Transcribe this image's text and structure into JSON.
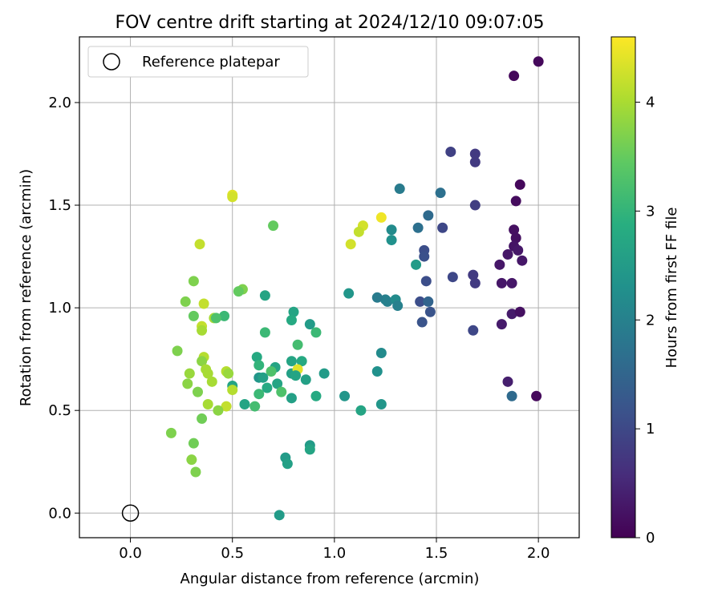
{
  "chart_data": {
    "type": "scatter",
    "title": "FOV centre drift starting at 2024/12/10 09:07:05",
    "xlabel": "Angular distance from reference (arcmin)",
    "ylabel": "Rotation from reference (arcmin)",
    "xlim": [
      -0.25,
      2.2
    ],
    "ylim": [
      -0.12,
      2.32
    ],
    "xticks": [
      "0.0",
      "0.5",
      "1.0",
      "1.5",
      "2.0"
    ],
    "yticks": [
      "0.0",
      "0.5",
      "1.0",
      "1.5",
      "2.0"
    ],
    "grid": true,
    "legend": {
      "position": "top-left",
      "entries": [
        "Reference platepar"
      ]
    },
    "reference_point": {
      "x": 0.0,
      "y": 0.0
    },
    "colorbar": {
      "label": "Hours from first FF file",
      "colormap": "viridis",
      "range": [
        0,
        4.6
      ],
      "ticks": [
        "0",
        "1",
        "2",
        "3",
        "4"
      ]
    },
    "points": [
      {
        "x": 2.0,
        "y": 2.2,
        "c": 0.1
      },
      {
        "x": 1.88,
        "y": 2.13,
        "c": 0.1
      },
      {
        "x": 1.91,
        "y": 1.6,
        "c": 0.1
      },
      {
        "x": 1.89,
        "y": 1.52,
        "c": 0.15
      },
      {
        "x": 1.88,
        "y": 1.38,
        "c": 0.2
      },
      {
        "x": 1.89,
        "y": 1.34,
        "c": 0.2
      },
      {
        "x": 1.88,
        "y": 1.3,
        "c": 0.25
      },
      {
        "x": 1.9,
        "y": 1.28,
        "c": 0.3
      },
      {
        "x": 1.85,
        "y": 1.26,
        "c": 0.3
      },
      {
        "x": 1.92,
        "y": 1.23,
        "c": 0.3
      },
      {
        "x": 1.81,
        "y": 1.21,
        "c": 0.3
      },
      {
        "x": 1.82,
        "y": 1.12,
        "c": 0.3
      },
      {
        "x": 1.87,
        "y": 1.12,
        "c": 0.3
      },
      {
        "x": 1.87,
        "y": 0.97,
        "c": 0.35
      },
      {
        "x": 1.91,
        "y": 0.98,
        "c": 0.2
      },
      {
        "x": 1.82,
        "y": 0.92,
        "c": 0.35
      },
      {
        "x": 1.85,
        "y": 0.64,
        "c": 0.4
      },
      {
        "x": 1.99,
        "y": 0.57,
        "c": 0.1
      },
      {
        "x": 1.87,
        "y": 0.57,
        "c": 1.6
      },
      {
        "x": 1.57,
        "y": 1.76,
        "c": 0.9
      },
      {
        "x": 1.69,
        "y": 1.75,
        "c": 0.8
      },
      {
        "x": 1.69,
        "y": 1.71,
        "c": 0.8
      },
      {
        "x": 1.69,
        "y": 1.5,
        "c": 0.85
      },
      {
        "x": 1.53,
        "y": 1.39,
        "c": 1.0
      },
      {
        "x": 1.58,
        "y": 1.15,
        "c": 1.0
      },
      {
        "x": 1.68,
        "y": 1.16,
        "c": 0.8
      },
      {
        "x": 1.69,
        "y": 1.12,
        "c": 0.8
      },
      {
        "x": 1.68,
        "y": 0.89,
        "c": 1.0
      },
      {
        "x": 1.44,
        "y": 1.28,
        "c": 1.1
      },
      {
        "x": 1.44,
        "y": 1.25,
        "c": 1.15
      },
      {
        "x": 1.45,
        "y": 1.13,
        "c": 1.1
      },
      {
        "x": 1.42,
        "y": 1.03,
        "c": 1.1
      },
      {
        "x": 1.46,
        "y": 1.03,
        "c": 1.5
      },
      {
        "x": 1.47,
        "y": 0.98,
        "c": 1.2
      },
      {
        "x": 1.43,
        "y": 0.93,
        "c": 1.2
      },
      {
        "x": 1.52,
        "y": 1.56,
        "c": 1.7
      },
      {
        "x": 1.46,
        "y": 1.45,
        "c": 1.6
      },
      {
        "x": 1.41,
        "y": 1.39,
        "c": 1.7
      },
      {
        "x": 1.32,
        "y": 1.58,
        "c": 1.9
      },
      {
        "x": 1.28,
        "y": 1.38,
        "c": 2.2
      },
      {
        "x": 1.28,
        "y": 1.33,
        "c": 2.3
      },
      {
        "x": 1.4,
        "y": 1.21,
        "c": 2.5
      },
      {
        "x": 1.25,
        "y": 1.04,
        "c": 2.0
      },
      {
        "x": 1.26,
        "y": 1.03,
        "c": 2.0
      },
      {
        "x": 1.3,
        "y": 1.04,
        "c": 2.2
      },
      {
        "x": 1.31,
        "y": 1.01,
        "c": 2.0
      },
      {
        "x": 1.21,
        "y": 1.05,
        "c": 1.9
      },
      {
        "x": 1.23,
        "y": 0.78,
        "c": 2.2
      },
      {
        "x": 1.21,
        "y": 0.69,
        "c": 2.3
      },
      {
        "x": 1.23,
        "y": 0.53,
        "c": 2.4
      },
      {
        "x": 1.13,
        "y": 0.5,
        "c": 2.7
      },
      {
        "x": 1.05,
        "y": 0.57,
        "c": 2.4
      },
      {
        "x": 1.07,
        "y": 1.07,
        "c": 2.4
      },
      {
        "x": 1.23,
        "y": 1.44,
        "c": 4.5
      },
      {
        "x": 1.14,
        "y": 1.4,
        "c": 4.3
      },
      {
        "x": 1.12,
        "y": 1.37,
        "c": 4.2
      },
      {
        "x": 1.08,
        "y": 1.31,
        "c": 4.3
      },
      {
        "x": 0.8,
        "y": 0.98,
        "c": 2.7
      },
      {
        "x": 0.79,
        "y": 0.94,
        "c": 2.8
      },
      {
        "x": 0.88,
        "y": 0.92,
        "c": 2.5
      },
      {
        "x": 0.91,
        "y": 0.88,
        "c": 3.1
      },
      {
        "x": 0.82,
        "y": 0.82,
        "c": 3.2
      },
      {
        "x": 0.84,
        "y": 0.74,
        "c": 2.8
      },
      {
        "x": 0.79,
        "y": 0.74,
        "c": 2.7
      },
      {
        "x": 0.95,
        "y": 0.68,
        "c": 2.5
      },
      {
        "x": 0.79,
        "y": 0.68,
        "c": 2.6
      },
      {
        "x": 0.82,
        "y": 0.7,
        "c": 4.4
      },
      {
        "x": 0.81,
        "y": 0.67,
        "c": 2.7
      },
      {
        "x": 0.86,
        "y": 0.65,
        "c": 2.6
      },
      {
        "x": 0.71,
        "y": 0.71,
        "c": 2.7
      },
      {
        "x": 0.69,
        "y": 0.69,
        "c": 3.3
      },
      {
        "x": 0.72,
        "y": 0.63,
        "c": 2.7
      },
      {
        "x": 0.74,
        "y": 0.59,
        "c": 3.3
      },
      {
        "x": 0.67,
        "y": 0.61,
        "c": 2.8
      },
      {
        "x": 0.79,
        "y": 0.56,
        "c": 2.6
      },
      {
        "x": 0.91,
        "y": 0.57,
        "c": 2.8
      },
      {
        "x": 0.88,
        "y": 0.33,
        "c": 2.5
      },
      {
        "x": 0.88,
        "y": 0.31,
        "c": 2.7
      },
      {
        "x": 0.76,
        "y": 0.27,
        "c": 2.5
      },
      {
        "x": 0.77,
        "y": 0.24,
        "c": 2.6
      },
      {
        "x": 0.73,
        "y": -0.01,
        "c": 2.5
      },
      {
        "x": 0.66,
        "y": 1.06,
        "c": 2.7
      },
      {
        "x": 0.66,
        "y": 0.88,
        "c": 3.1
      },
      {
        "x": 0.62,
        "y": 0.76,
        "c": 2.8
      },
      {
        "x": 0.63,
        "y": 0.72,
        "c": 3.0
      },
      {
        "x": 0.63,
        "y": 0.66,
        "c": 2.4
      },
      {
        "x": 0.65,
        "y": 0.66,
        "c": 2.6
      },
      {
        "x": 0.63,
        "y": 0.58,
        "c": 3.1
      },
      {
        "x": 0.56,
        "y": 0.53,
        "c": 2.7
      },
      {
        "x": 0.61,
        "y": 0.52,
        "c": 3.2
      },
      {
        "x": 0.5,
        "y": 0.62,
        "c": 2.7
      },
      {
        "x": 0.5,
        "y": 0.6,
        "c": 4.1
      },
      {
        "x": 0.7,
        "y": 1.4,
        "c": 3.5
      },
      {
        "x": 0.5,
        "y": 1.55,
        "c": 4.4
      },
      {
        "x": 0.5,
        "y": 1.54,
        "c": 4.3
      },
      {
        "x": 0.55,
        "y": 1.09,
        "c": 3.7
      },
      {
        "x": 0.53,
        "y": 1.08,
        "c": 3.5
      },
      {
        "x": 0.46,
        "y": 0.96,
        "c": 3.1
      },
      {
        "x": 0.41,
        "y": 0.95,
        "c": 4.0
      },
      {
        "x": 0.42,
        "y": 0.95,
        "c": 3.3
      },
      {
        "x": 0.34,
        "y": 1.31,
        "c": 4.2
      },
      {
        "x": 0.31,
        "y": 1.13,
        "c": 3.7
      },
      {
        "x": 0.27,
        "y": 1.03,
        "c": 3.7
      },
      {
        "x": 0.36,
        "y": 1.02,
        "c": 4.2
      },
      {
        "x": 0.31,
        "y": 0.96,
        "c": 3.5
      },
      {
        "x": 0.35,
        "y": 0.91,
        "c": 4.2
      },
      {
        "x": 0.35,
        "y": 0.89,
        "c": 4.0
      },
      {
        "x": 0.23,
        "y": 0.79,
        "c": 3.7
      },
      {
        "x": 0.36,
        "y": 0.76,
        "c": 4.1
      },
      {
        "x": 0.35,
        "y": 0.74,
        "c": 3.8
      },
      {
        "x": 0.37,
        "y": 0.7,
        "c": 4.0
      },
      {
        "x": 0.38,
        "y": 0.68,
        "c": 4.0
      },
      {
        "x": 0.29,
        "y": 0.68,
        "c": 3.9
      },
      {
        "x": 0.47,
        "y": 0.69,
        "c": 4.1
      },
      {
        "x": 0.48,
        "y": 0.68,
        "c": 3.9
      },
      {
        "x": 0.4,
        "y": 0.64,
        "c": 4.0
      },
      {
        "x": 0.28,
        "y": 0.63,
        "c": 3.8
      },
      {
        "x": 0.33,
        "y": 0.59,
        "c": 3.7
      },
      {
        "x": 0.38,
        "y": 0.53,
        "c": 4.0
      },
      {
        "x": 0.47,
        "y": 0.52,
        "c": 4.2
      },
      {
        "x": 0.43,
        "y": 0.5,
        "c": 3.8
      },
      {
        "x": 0.35,
        "y": 0.46,
        "c": 3.6
      },
      {
        "x": 0.2,
        "y": 0.39,
        "c": 3.7
      },
      {
        "x": 0.31,
        "y": 0.34,
        "c": 3.6
      },
      {
        "x": 0.3,
        "y": 0.26,
        "c": 3.8
      },
      {
        "x": 0.32,
        "y": 0.2,
        "c": 3.7
      }
    ]
  }
}
